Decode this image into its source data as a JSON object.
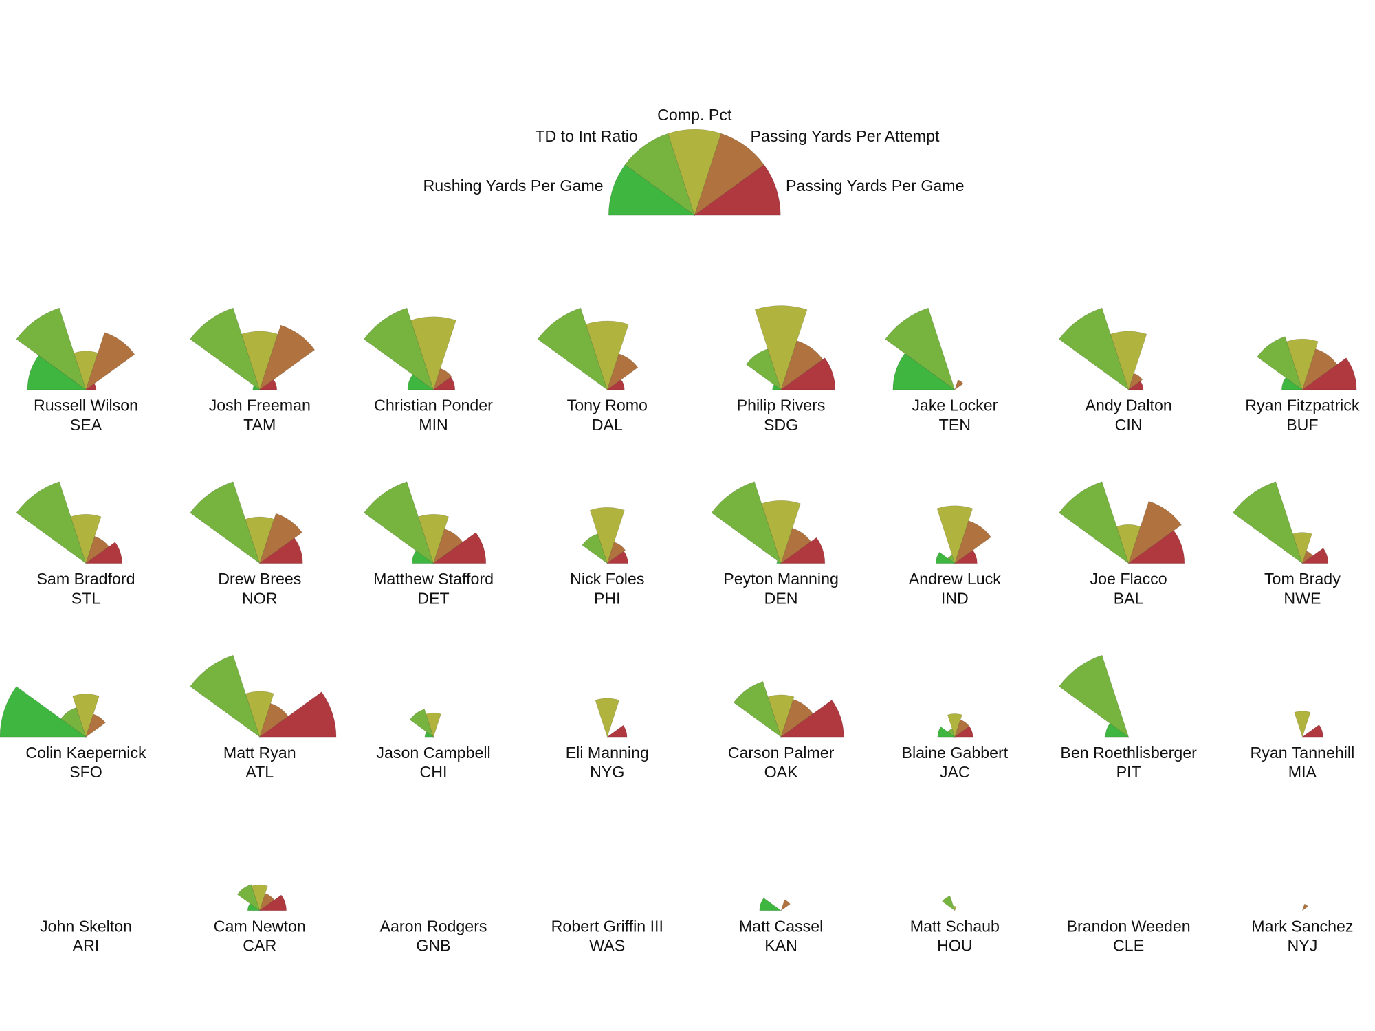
{
  "chart_data": {
    "type": "polar-area-grid",
    "categories": [
      "Rushing Yards Per Game",
      "TD to Int Ratio",
      "Comp. Pct",
      "Passing Yards Per Attempt",
      "Passing Yards Per Game"
    ],
    "colors": [
      "#3fb63f",
      "#76b33f",
      "#b1b33f",
      "#b0733f",
      "#b0383f"
    ],
    "rlim": [
      0,
      1
    ],
    "players": [
      {
        "name": "Russell Wilson",
        "team": "SEA",
        "values": [
          0.68,
          1.0,
          0.45,
          0.7,
          0.12
        ]
      },
      {
        "name": "Josh Freeman",
        "team": "TAM",
        "values": [
          0.08,
          1.0,
          0.68,
          0.79,
          0.2
        ]
      },
      {
        "name": "Christian Ponder",
        "team": "MIN",
        "values": [
          0.3,
          1.0,
          0.85,
          0.26,
          0.25
        ]
      },
      {
        "name": "Tony Romo",
        "team": "DAL",
        "values": [
          0,
          1.0,
          0.8,
          0.44,
          0.2
        ]
      },
      {
        "name": "Philip Rivers",
        "team": "SDG",
        "values": [
          0.1,
          0.5,
          0.98,
          0.6,
          0.63
        ]
      },
      {
        "name": "Jake Locker",
        "team": "TEN",
        "values": [
          0.72,
          1.0,
          0,
          0.12,
          0
        ]
      },
      {
        "name": "Andy Dalton",
        "team": "CIN",
        "values": [
          0,
          1.0,
          0.68,
          0.2,
          0.17
        ]
      },
      {
        "name": "Ryan Fitzpatrick",
        "team": "BUF",
        "values": [
          0.24,
          0.65,
          0.59,
          0.5,
          0.63
        ]
      },
      {
        "name": "Sam Bradford",
        "team": "STL",
        "values": [
          0,
          1.0,
          0.57,
          0.33,
          0.42
        ]
      },
      {
        "name": "Drew Brees",
        "team": "NOR",
        "values": [
          0,
          1.0,
          0.54,
          0.61,
          0.5
        ]
      },
      {
        "name": "Matthew Stafford",
        "team": "DET",
        "values": [
          0.25,
          1.0,
          0.57,
          0.42,
          0.61
        ]
      },
      {
        "name": "Nick Foles",
        "team": "PHI",
        "values": [
          0,
          0.36,
          0.65,
          0.26,
          0.24
        ]
      },
      {
        "name": "Peyton Manning",
        "team": "DEN",
        "values": [
          0.05,
          1.0,
          0.73,
          0.43,
          0.51
        ]
      },
      {
        "name": "Andrew Luck",
        "team": "IND",
        "values": [
          0.22,
          0.1,
          0.67,
          0.52,
          0.26
        ]
      },
      {
        "name": "Joe Flacco",
        "team": "BAL",
        "values": [
          0,
          1.0,
          0.45,
          0.76,
          0.65
        ]
      },
      {
        "name": "Tom Brady",
        "team": "NWE",
        "values": [
          0,
          1.0,
          0.36,
          0.15,
          0.3
        ]
      },
      {
        "name": "Colin Kaepernick",
        "team": "SFO",
        "values": [
          1.0,
          0.36,
          0.5,
          0.28,
          0
        ]
      },
      {
        "name": "Matt Ryan",
        "team": "ATL",
        "values": [
          0,
          1.0,
          0.53,
          0.41,
          0.89
        ]
      },
      {
        "name": "Jason Campbell",
        "team": "CHI",
        "values": [
          0.1,
          0.34,
          0.28,
          0,
          0
        ]
      },
      {
        "name": "Eli Manning",
        "team": "NYG",
        "values": [
          0,
          0,
          0.45,
          0,
          0.23
        ]
      },
      {
        "name": "Carson Palmer",
        "team": "OAK",
        "values": [
          0,
          0.68,
          0.49,
          0.46,
          0.73
        ]
      },
      {
        "name": "Blaine Gabbert",
        "team": "JAC",
        "values": [
          0.2,
          0.1,
          0.27,
          0.21,
          0.21
        ]
      },
      {
        "name": "Ben Roethlisberger",
        "team": "PIT",
        "values": [
          0.27,
          1.0,
          0,
          0,
          0
        ]
      },
      {
        "name": "Ryan Tannehill",
        "team": "MIA",
        "values": [
          0,
          0,
          0.3,
          0,
          0.24
        ]
      },
      {
        "name": "John Skelton",
        "team": "ARI",
        "values": [
          0,
          0,
          0,
          0,
          0
        ]
      },
      {
        "name": "Cam Newton",
        "team": "CAR",
        "values": [
          0.14,
          0.32,
          0.3,
          0.21,
          0.31
        ]
      },
      {
        "name": "Aaron Rodgers",
        "team": "GNB",
        "values": [
          0,
          0,
          0,
          0,
          0
        ]
      },
      {
        "name": "Robert Griffin III",
        "team": "WAS",
        "values": [
          0,
          0,
          0,
          0,
          0
        ]
      },
      {
        "name": "Matt Cassel",
        "team": "KAN",
        "values": [
          0.25,
          0,
          0,
          0.13,
          0
        ]
      },
      {
        "name": "Matt Schaub",
        "team": "HOU",
        "values": [
          0,
          0.18,
          0.05,
          0,
          0
        ]
      },
      {
        "name": "Brandon Weeden",
        "team": "CLE",
        "values": [
          0,
          0,
          0,
          0,
          0
        ]
      },
      {
        "name": "Mark Sanchez",
        "team": "NYJ",
        "values": [
          0,
          0,
          0,
          0.08,
          0
        ]
      }
    ]
  }
}
